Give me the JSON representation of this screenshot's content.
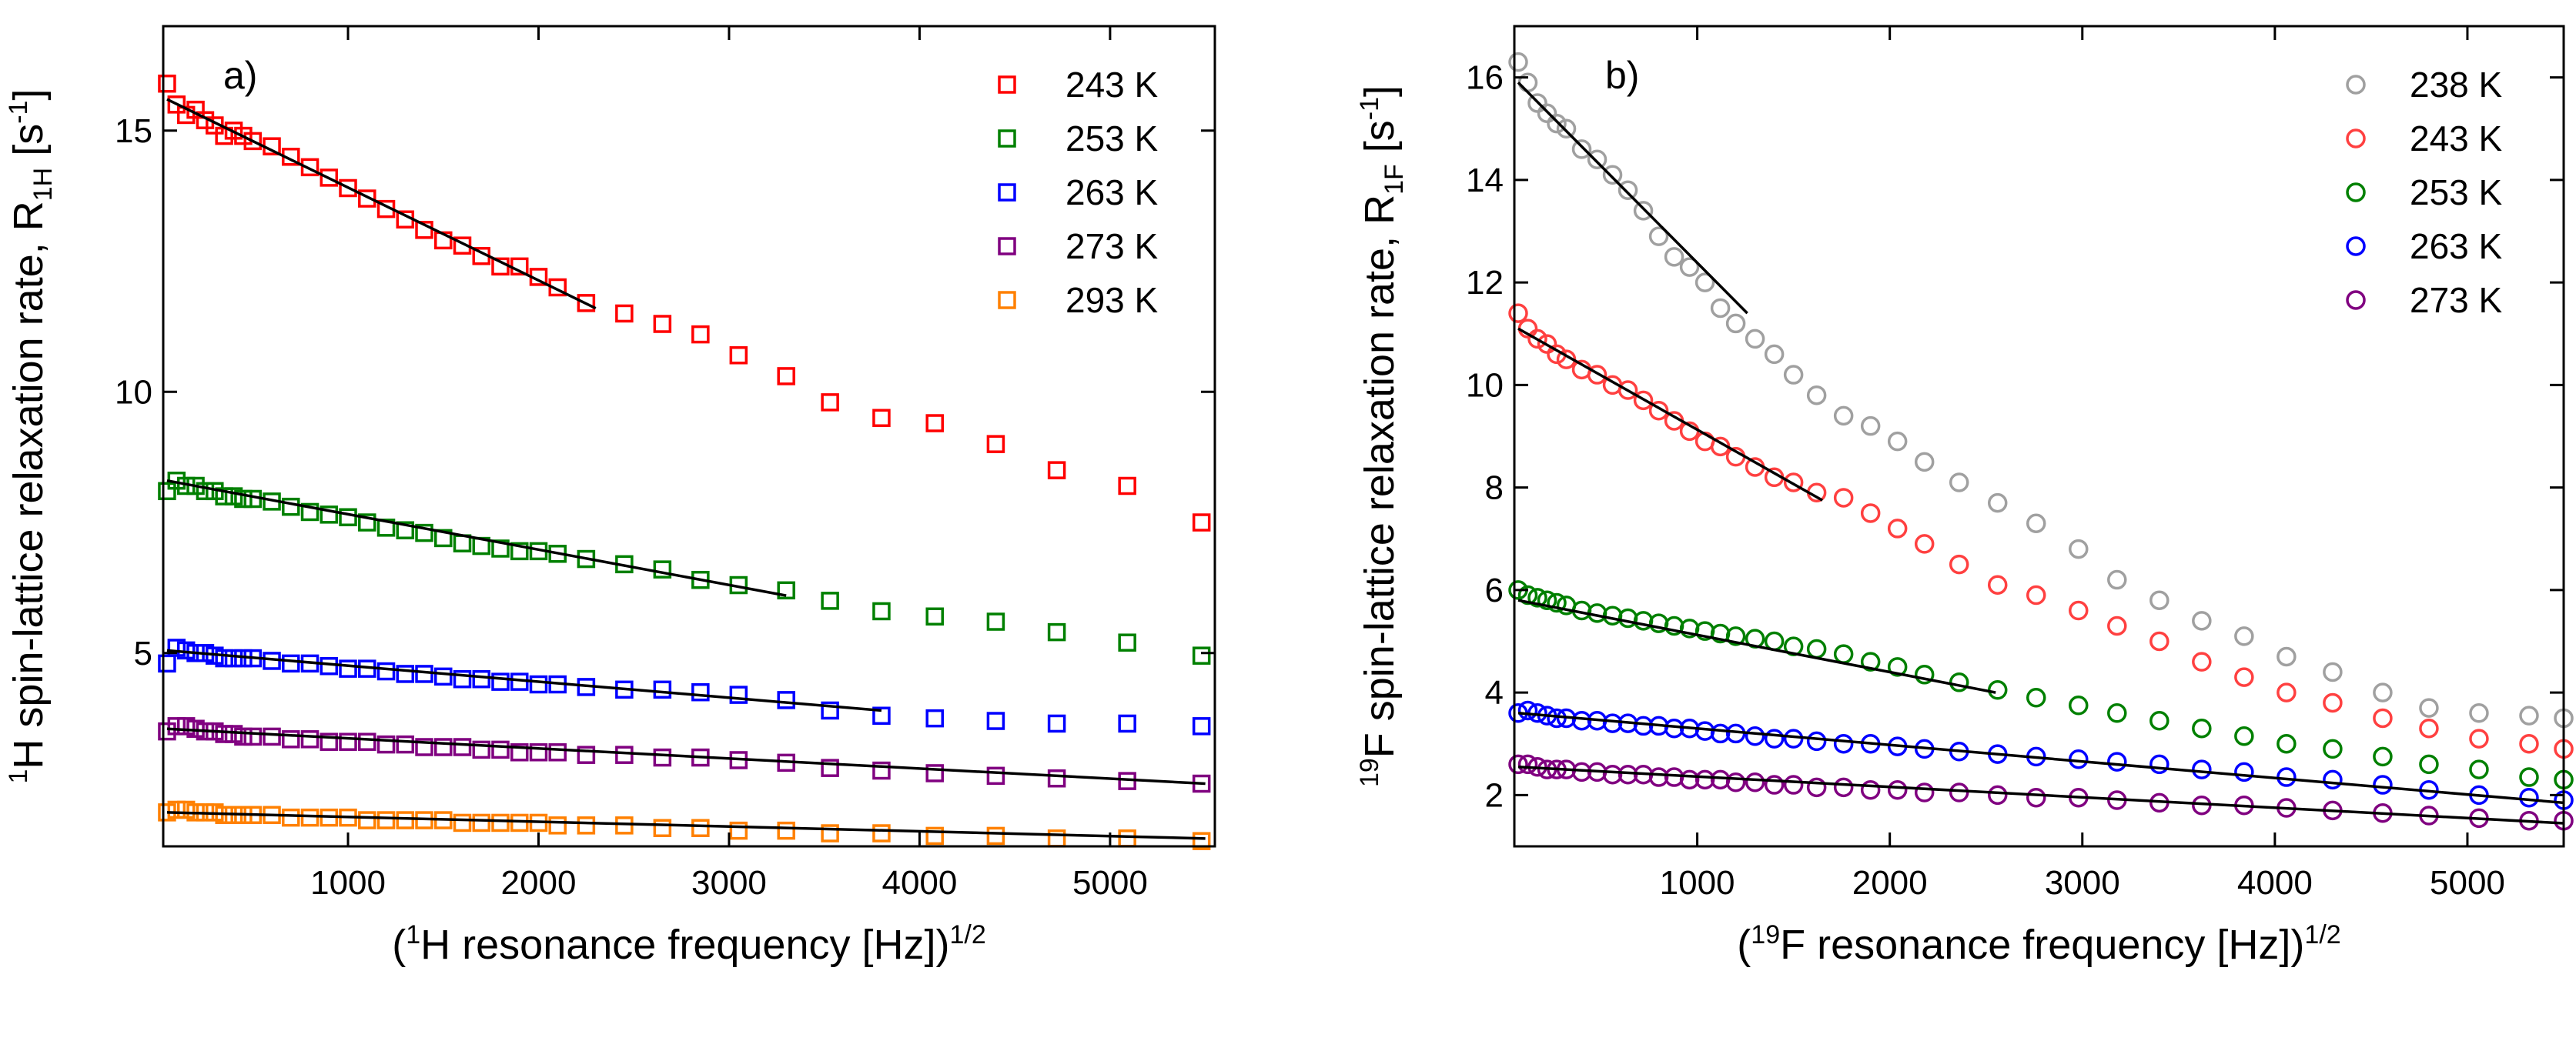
{
  "chart_data": [
    {
      "type": "scatter",
      "panel_label": "a)",
      "x_title": "(<sup>1</sup>H resonance  frequency [Hz])<sup>1/2</sup>",
      "y_title": "<sup>1</sup>H spin-lattice relaxation rate, R<sub>1H</sub> [s<sup>-1</sup>]",
      "marker": "square",
      "xlim": [
        30,
        5550
      ],
      "ylim": [
        1.3,
        17.0
      ],
      "xticks": [
        1000,
        2000,
        3000,
        4000,
        5000
      ],
      "xtick_labels": [
        "1000",
        "2000",
        "3000",
        "4000",
        "5000"
      ],
      "yticks": [
        5,
        10,
        15
      ],
      "ytick_labels": [
        "5",
        "10",
        "15"
      ],
      "legend_position": "top-right",
      "x": [
        50,
        100,
        150,
        200,
        250,
        300,
        350,
        400,
        450,
        500,
        600,
        700,
        800,
        900,
        1000,
        1100,
        1200,
        1300,
        1400,
        1500,
        1600,
        1700,
        1800,
        1900,
        2000,
        2100,
        2250,
        2450,
        2650,
        2850,
        3050,
        3300,
        3530,
        3800,
        4080,
        4400,
        4720,
        5090,
        5480
      ],
      "series": [
        {
          "name": "243 K",
          "color": "#ff0000",
          "y": [
            15.9,
            15.5,
            15.3,
            15.4,
            15.2,
            15.1,
            14.9,
            15.0,
            14.9,
            14.8,
            14.7,
            14.5,
            14.3,
            14.1,
            13.9,
            13.7,
            13.5,
            13.3,
            13.1,
            12.9,
            12.8,
            12.6,
            12.4,
            12.4,
            12.2,
            12.0,
            11.7,
            11.5,
            11.3,
            11.1,
            10.7,
            10.3,
            9.8,
            9.5,
            9.4,
            9.0,
            8.5,
            8.2,
            7.5
          ],
          "fit_x": [
            50,
            2300
          ],
          "fit_y": [
            15.6,
            11.6
          ]
        },
        {
          "name": "253 K",
          "color": "#008000",
          "y": [
            8.1,
            8.3,
            8.2,
            8.2,
            8.1,
            8.1,
            8.0,
            8.0,
            7.95,
            7.95,
            7.9,
            7.8,
            7.7,
            7.65,
            7.6,
            7.5,
            7.4,
            7.35,
            7.3,
            7.2,
            7.1,
            7.05,
            7.0,
            6.95,
            6.95,
            6.9,
            6.8,
            6.7,
            6.6,
            6.4,
            6.3,
            6.2,
            6.0,
            5.8,
            5.7,
            5.6,
            5.4,
            5.2,
            4.95
          ],
          "fit_x": [
            50,
            3300
          ],
          "fit_y": [
            8.3,
            6.1
          ]
        },
        {
          "name": "263 K",
          "color": "#0000ff",
          "y": [
            4.8,
            5.1,
            5.05,
            5.0,
            5.0,
            4.95,
            4.9,
            4.9,
            4.9,
            4.9,
            4.85,
            4.8,
            4.8,
            4.75,
            4.7,
            4.7,
            4.65,
            4.6,
            4.6,
            4.55,
            4.5,
            4.5,
            4.45,
            4.45,
            4.4,
            4.4,
            4.35,
            4.3,
            4.3,
            4.25,
            4.2,
            4.1,
            3.9,
            3.8,
            3.75,
            3.7,
            3.65,
            3.65,
            3.6
          ],
          "fit_x": [
            50,
            3800
          ],
          "fit_y": [
            5.05,
            3.9
          ]
        },
        {
          "name": "273 K",
          "color": "#800080",
          "y": [
            3.5,
            3.6,
            3.6,
            3.55,
            3.5,
            3.5,
            3.45,
            3.45,
            3.4,
            3.4,
            3.4,
            3.35,
            3.35,
            3.3,
            3.3,
            3.3,
            3.25,
            3.25,
            3.2,
            3.2,
            3.2,
            3.15,
            3.15,
            3.1,
            3.1,
            3.1,
            3.05,
            3.05,
            3.0,
            3.0,
            2.95,
            2.9,
            2.8,
            2.75,
            2.7,
            2.65,
            2.6,
            2.55,
            2.5
          ],
          "fit_x": [
            50,
            5500
          ],
          "fit_y": [
            3.55,
            2.5
          ]
        },
        {
          "name": "293 K",
          "color": "#ff8000",
          "y": [
            1.95,
            2.0,
            2.0,
            1.95,
            1.95,
            1.95,
            1.9,
            1.9,
            1.9,
            1.9,
            1.9,
            1.85,
            1.85,
            1.85,
            1.85,
            1.8,
            1.8,
            1.8,
            1.8,
            1.8,
            1.75,
            1.75,
            1.75,
            1.75,
            1.75,
            1.7,
            1.7,
            1.7,
            1.65,
            1.65,
            1.6,
            1.6,
            1.55,
            1.55,
            1.5,
            1.5,
            1.45,
            1.45,
            1.4
          ],
          "fit_x": [
            50,
            5500
          ],
          "fit_y": [
            1.95,
            1.45
          ]
        }
      ]
    },
    {
      "type": "scatter",
      "panel_label": "b)",
      "x_title": "(<sup>19</sup>F  resonance frequency [Hz])<sup>1/2</sup>",
      "y_title": "<sup>19</sup>F spin-lattice relaxation rate, R<sub>1F</sub> [s<sup>-1</sup>]",
      "marker": "circle",
      "xlim": [
        50,
        5500
      ],
      "ylim": [
        1.0,
        17.0
      ],
      "xticks": [
        1000,
        2000,
        3000,
        4000,
        5000
      ],
      "xtick_labels": [
        "1000",
        "2000",
        "3000",
        "4000",
        "5000"
      ],
      "yticks": [
        2,
        4,
        6,
        8,
        10,
        12,
        14,
        16
      ],
      "ytick_labels": [
        "2",
        "4",
        "6",
        "8",
        "10",
        "12",
        "14",
        "16"
      ],
      "legend_position": "top-right",
      "x": [
        70,
        120,
        170,
        220,
        270,
        320,
        400,
        480,
        560,
        640,
        720,
        800,
        880,
        960,
        1040,
        1120,
        1200,
        1300,
        1400,
        1500,
        1620,
        1760,
        1900,
        2040,
        2180,
        2360,
        2560,
        2760,
        2980,
        3180,
        3400,
        3620,
        3840,
        4060,
        4300,
        4560,
        4800,
        5060,
        5320,
        5500
      ],
      "series": [
        {
          "name": "238 K",
          "color": "#a0a0a0",
          "y": [
            16.3,
            15.9,
            15.5,
            15.3,
            15.1,
            15.0,
            14.6,
            14.4,
            14.1,
            13.8,
            13.4,
            12.9,
            12.5,
            12.3,
            12.0,
            11.5,
            11.2,
            10.9,
            10.6,
            10.2,
            9.8,
            9.4,
            9.2,
            8.9,
            8.5,
            8.1,
            7.7,
            7.3,
            6.8,
            6.2,
            5.8,
            5.4,
            5.1,
            4.7,
            4.4,
            4.0,
            3.7,
            3.6,
            3.55,
            3.5
          ],
          "fit_x": [
            70,
            1260
          ],
          "fit_y": [
            15.9,
            11.4
          ]
        },
        {
          "name": "243 K",
          "color": "#ff4040",
          "y": [
            11.4,
            11.1,
            10.9,
            10.8,
            10.6,
            10.5,
            10.3,
            10.2,
            10.0,
            9.9,
            9.7,
            9.5,
            9.3,
            9.1,
            8.9,
            8.8,
            8.6,
            8.4,
            8.2,
            8.1,
            7.9,
            7.8,
            7.5,
            7.2,
            6.9,
            6.5,
            6.1,
            5.9,
            5.6,
            5.3,
            5.0,
            4.6,
            4.3,
            4.0,
            3.8,
            3.5,
            3.3,
            3.1,
            3.0,
            2.9
          ],
          "fit_x": [
            70,
            1650
          ],
          "fit_y": [
            11.1,
            7.75
          ]
        },
        {
          "name": "253 K",
          "color": "#008000",
          "y": [
            6.0,
            5.9,
            5.85,
            5.8,
            5.75,
            5.7,
            5.6,
            5.55,
            5.5,
            5.45,
            5.4,
            5.35,
            5.3,
            5.25,
            5.2,
            5.15,
            5.1,
            5.05,
            5.0,
            4.9,
            4.85,
            4.75,
            4.6,
            4.5,
            4.35,
            4.2,
            4.05,
            3.9,
            3.75,
            3.6,
            3.45,
            3.3,
            3.15,
            3.0,
            2.9,
            2.75,
            2.6,
            2.5,
            2.35,
            2.3
          ],
          "fit_x": [
            70,
            2550
          ],
          "fit_y": [
            5.8,
            4.0
          ]
        },
        {
          "name": "263 K",
          "color": "#0000ff",
          "y": [
            3.6,
            3.65,
            3.6,
            3.55,
            3.5,
            3.5,
            3.45,
            3.45,
            3.4,
            3.4,
            3.35,
            3.35,
            3.3,
            3.3,
            3.25,
            3.2,
            3.2,
            3.15,
            3.1,
            3.1,
            3.05,
            3.0,
            3.0,
            2.95,
            2.9,
            2.85,
            2.8,
            2.75,
            2.7,
            2.65,
            2.6,
            2.5,
            2.45,
            2.35,
            2.3,
            2.2,
            2.1,
            2.0,
            1.95,
            1.9
          ],
          "fit_x": [
            70,
            5500
          ],
          "fit_y": [
            3.6,
            1.85
          ]
        },
        {
          "name": "273 K",
          "color": "#800080",
          "y": [
            2.6,
            2.6,
            2.55,
            2.5,
            2.5,
            2.5,
            2.45,
            2.45,
            2.4,
            2.4,
            2.4,
            2.35,
            2.35,
            2.3,
            2.3,
            2.3,
            2.25,
            2.25,
            2.2,
            2.2,
            2.15,
            2.15,
            2.1,
            2.1,
            2.05,
            2.05,
            2.0,
            1.95,
            1.95,
            1.9,
            1.85,
            1.8,
            1.8,
            1.75,
            1.7,
            1.65,
            1.6,
            1.55,
            1.5,
            1.5
          ],
          "fit_x": [
            70,
            5500
          ],
          "fit_y": [
            2.55,
            1.45
          ]
        }
      ]
    }
  ]
}
